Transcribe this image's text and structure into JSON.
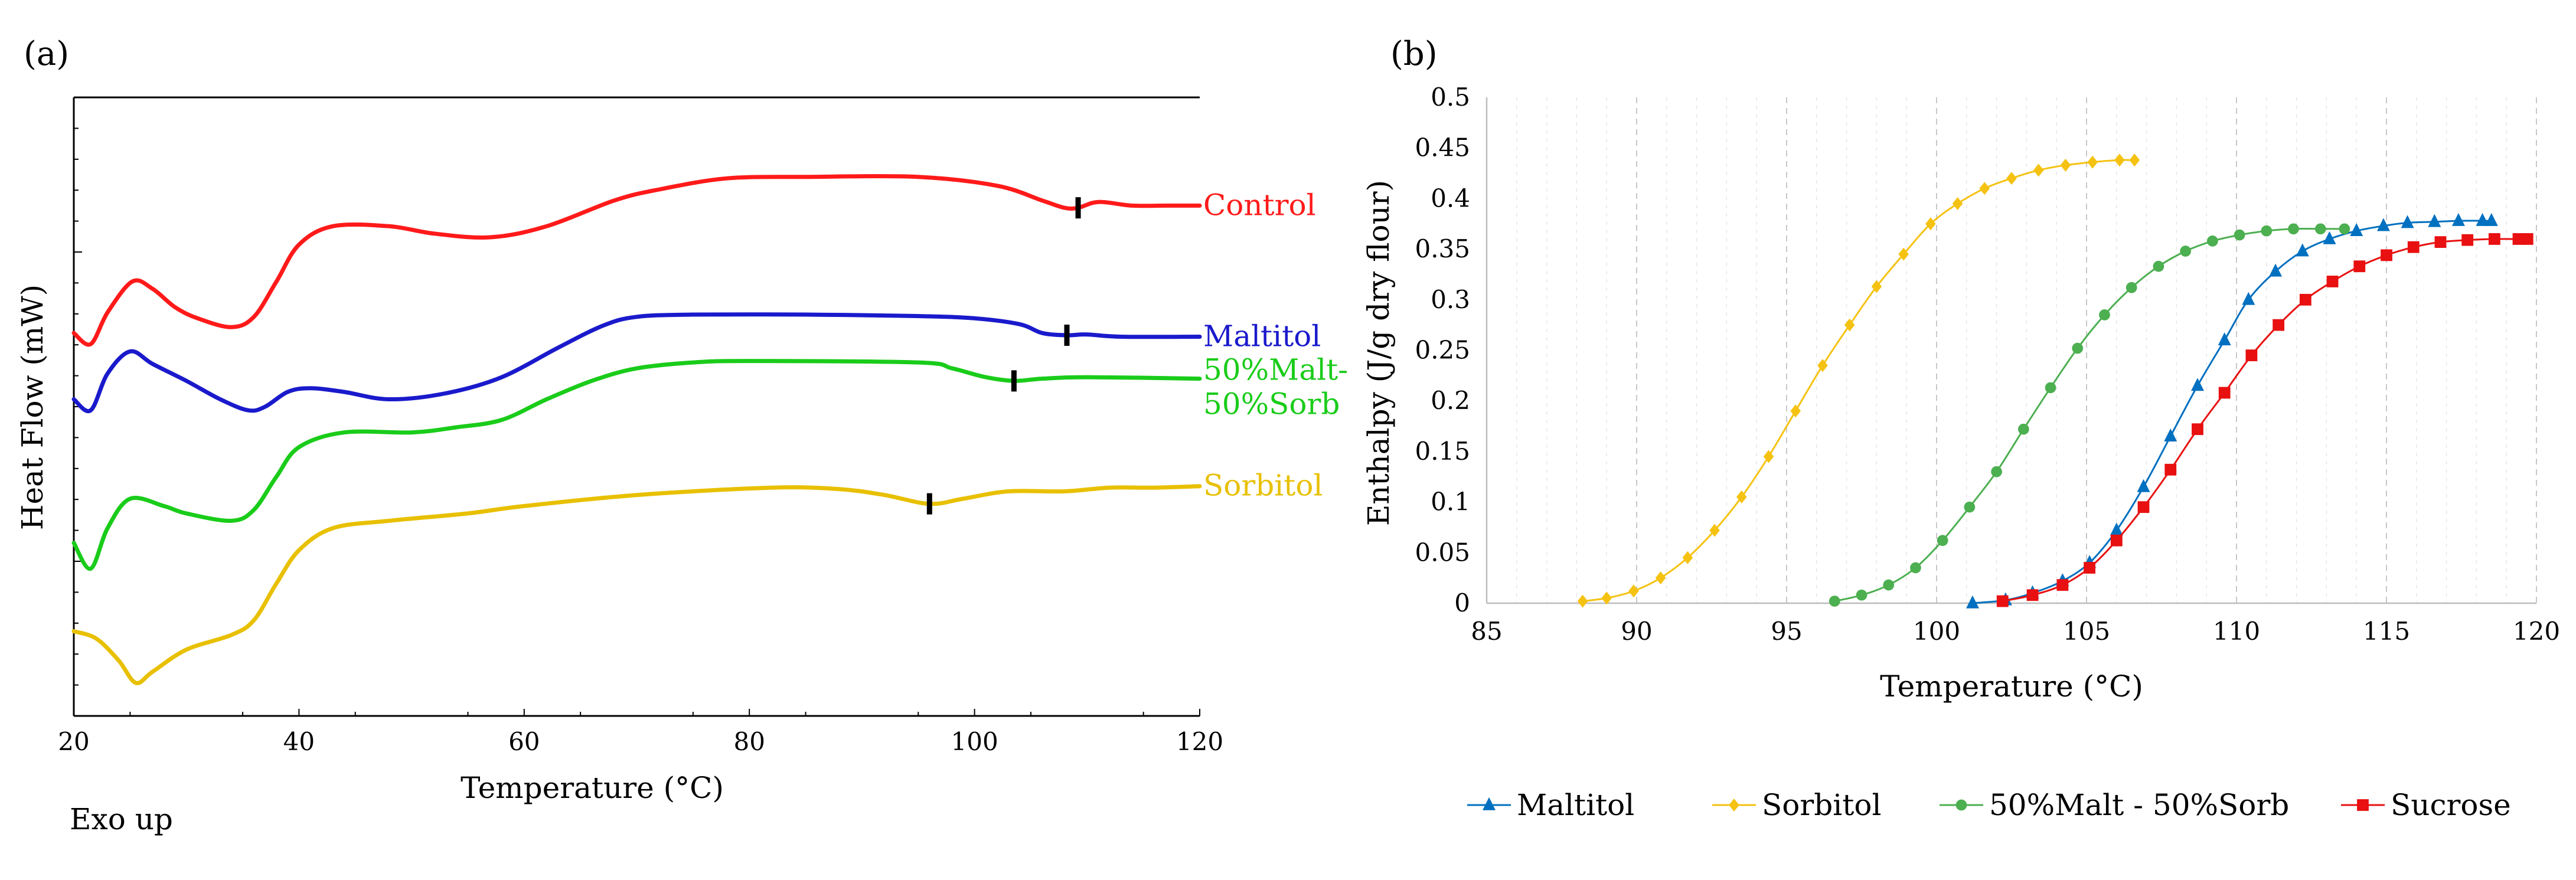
{
  "panel_a": {
    "label": "(a)",
    "note": "Exo up"
  },
  "panel_b": {
    "label": "(b)"
  },
  "chart_data": [
    {
      "type": "line",
      "xlabel": "Temperature (°C)",
      "ylabel": "Heat Flow (mW)",
      "xlim": [
        20,
        120
      ],
      "xticks": [
        "20",
        "40",
        "60",
        "80",
        "100",
        "120"
      ],
      "y_tick_labels_shown": false,
      "legend": "direct labels at right end of each curve",
      "series": [
        {
          "name": "Control",
          "color": "#ff1a1a",
          "end_marker_x": 109.2,
          "points": [
            [
              20,
              0.6
            ],
            [
              21.5,
              0.45
            ],
            [
              23,
              0.88
            ],
            [
              25.2,
              1.3
            ],
            [
              27,
              1.2
            ],
            [
              29,
              0.95
            ],
            [
              31,
              0.8
            ],
            [
              34,
              0.68
            ],
            [
              36,
              0.82
            ],
            [
              38,
              1.3
            ],
            [
              40,
              1.8
            ],
            [
              43,
              2.05
            ],
            [
              48,
              2.05
            ],
            [
              52,
              1.95
            ],
            [
              57,
              1.9
            ],
            [
              62,
              2.05
            ],
            [
              68,
              2.4
            ],
            [
              72,
              2.55
            ],
            [
              78,
              2.7
            ],
            [
              85,
              2.72
            ],
            [
              95,
              2.72
            ],
            [
              102,
              2.6
            ],
            [
              106,
              2.4
            ],
            [
              108,
              2.3
            ],
            [
              109.2,
              2.3
            ],
            [
              111,
              2.38
            ],
            [
              114,
              2.33
            ],
            [
              117,
              2.33
            ],
            [
              120,
              2.33
            ]
          ]
        },
        {
          "name": "Maltitol",
          "color": "#1a1acc",
          "end_marker_x": 108.2,
          "points": [
            [
              20,
              -0.3
            ],
            [
              21.5,
              -0.45
            ],
            [
              23,
              0.05
            ],
            [
              25,
              0.35
            ],
            [
              27,
              0.18
            ],
            [
              30,
              -0.05
            ],
            [
              33,
              -0.3
            ],
            [
              35.5,
              -0.45
            ],
            [
              37,
              -0.4
            ],
            [
              39,
              -0.2
            ],
            [
              41,
              -0.15
            ],
            [
              44,
              -0.2
            ],
            [
              48,
              -0.3
            ],
            [
              53,
              -0.22
            ],
            [
              58,
              0.0
            ],
            [
              63,
              0.4
            ],
            [
              67,
              0.7
            ],
            [
              70,
              0.82
            ],
            [
              75,
              0.85
            ],
            [
              85,
              0.85
            ],
            [
              95,
              0.83
            ],
            [
              100,
              0.8
            ],
            [
              104,
              0.72
            ],
            [
              106,
              0.6
            ],
            [
              108.2,
              0.57
            ],
            [
              110,
              0.58
            ],
            [
              113,
              0.55
            ],
            [
              120,
              0.55
            ]
          ]
        },
        {
          "name": "50%Malt-50%Sorb",
          "name_display": [
            "50%Malt-",
            "50%Sorb"
          ],
          "color": "#1acc1a",
          "end_marker_x": 103.5,
          "points": [
            [
              20,
              -2.25
            ],
            [
              21.5,
              -2.6
            ],
            [
              23,
              -2.05
            ],
            [
              25,
              -1.65
            ],
            [
              28,
              -1.75
            ],
            [
              30,
              -1.85
            ],
            [
              34,
              -1.95
            ],
            [
              36,
              -1.8
            ],
            [
              38,
              -1.35
            ],
            [
              40,
              -0.95
            ],
            [
              44,
              -0.75
            ],
            [
              50,
              -0.75
            ],
            [
              54,
              -0.68
            ],
            [
              58,
              -0.58
            ],
            [
              62,
              -0.3
            ],
            [
              66,
              -0.05
            ],
            [
              70,
              0.12
            ],
            [
              75,
              0.2
            ],
            [
              80,
              0.22
            ],
            [
              95,
              0.2
            ],
            [
              98,
              0.12
            ],
            [
              101,
              0.0
            ],
            [
              103.5,
              -0.05
            ],
            [
              106,
              -0.02
            ],
            [
              110,
              0.0
            ],
            [
              120,
              -0.02
            ]
          ]
        },
        {
          "name": "Sorbitol",
          "color": "#e8c000",
          "end_marker_x": 96.0,
          "points": [
            [
              20,
              -3.45
            ],
            [
              22,
              -3.55
            ],
            [
              24,
              -3.85
            ],
            [
              25.5,
              -4.15
            ],
            [
              27,
              -4.0
            ],
            [
              30,
              -3.7
            ],
            [
              34,
              -3.5
            ],
            [
              36,
              -3.3
            ],
            [
              38,
              -2.8
            ],
            [
              40,
              -2.35
            ],
            [
              43,
              -2.05
            ],
            [
              48,
              -1.95
            ],
            [
              55,
              -1.85
            ],
            [
              60,
              -1.75
            ],
            [
              70,
              -1.6
            ],
            [
              82,
              -1.5
            ],
            [
              88,
              -1.52
            ],
            [
              92,
              -1.6
            ],
            [
              96,
              -1.72
            ],
            [
              99,
              -1.65
            ],
            [
              103,
              -1.55
            ],
            [
              108,
              -1.55
            ],
            [
              112,
              -1.5
            ],
            [
              116,
              -1.5
            ],
            [
              120,
              -1.48
            ]
          ]
        }
      ]
    },
    {
      "type": "line",
      "xlabel": "Temperature (°C)",
      "ylabel": "Enthalpy (J/g dry flour)",
      "xlim": [
        85,
        120
      ],
      "ylim": [
        0,
        0.5
      ],
      "xticks": [
        "85",
        "90",
        "95",
        "100",
        "105",
        "110",
        "115",
        "120"
      ],
      "yticks": [
        "0",
        "0.05",
        "0.1",
        "0.15",
        "0.2",
        "0.25",
        "0.3",
        "0.35",
        "0.4",
        "0.45",
        "0.5"
      ],
      "grid": "vertical dashed",
      "legend": "bottom",
      "series": [
        {
          "name": "Maltitol",
          "color": "#0070c0",
          "marker": "triangle",
          "x": [
            101.2,
            102.3,
            103.2,
            104.2,
            105.1,
            106.0,
            106.9,
            107.8,
            108.7,
            109.6,
            110.4,
            111.3,
            112.2,
            113.1,
            114.0,
            114.9,
            115.7,
            116.6,
            117.4,
            118.2,
            118.5
          ],
          "y": [
            0,
            0.003,
            0.01,
            0.022,
            0.04,
            0.072,
            0.115,
            0.165,
            0.215,
            0.26,
            0.3,
            0.328,
            0.348,
            0.36,
            0.368,
            0.373,
            0.376,
            0.377,
            0.378,
            0.378,
            0.378
          ]
        },
        {
          "name": "Sorbitol",
          "color": "#f5c211",
          "marker": "diamond",
          "x": [
            88.2,
            89.0,
            89.9,
            90.8,
            91.7,
            92.6,
            93.5,
            94.4,
            95.3,
            96.2,
            97.1,
            98.0,
            98.9,
            99.8,
            100.7,
            101.6,
            102.5,
            103.4,
            104.3,
            105.2,
            106.1,
            106.6
          ],
          "y": [
            0.002,
            0.005,
            0.012,
            0.025,
            0.045,
            0.072,
            0.105,
            0.145,
            0.19,
            0.235,
            0.275,
            0.313,
            0.345,
            0.375,
            0.395,
            0.41,
            0.42,
            0.428,
            0.433,
            0.436,
            0.438,
            0.438
          ]
        },
        {
          "name": "50%Malt - 50%Sorb",
          "color": "#4caf50",
          "marker": "circle",
          "x": [
            96.6,
            97.5,
            98.4,
            99.3,
            100.2,
            101.1,
            102.0,
            102.9,
            103.8,
            104.7,
            105.6,
            106.5,
            107.4,
            108.3,
            109.2,
            110.1,
            111.0,
            111.9,
            112.8,
            113.6
          ],
          "y": [
            0.002,
            0.008,
            0.018,
            0.035,
            0.062,
            0.095,
            0.13,
            0.172,
            0.213,
            0.252,
            0.285,
            0.312,
            0.333,
            0.348,
            0.358,
            0.364,
            0.368,
            0.37,
            0.37,
            0.37
          ]
        },
        {
          "name": "Sucrose",
          "color": "#e81010",
          "marker": "square",
          "x": [
            102.2,
            103.2,
            104.2,
            105.1,
            106.0,
            106.9,
            107.8,
            108.7,
            109.6,
            110.5,
            111.4,
            112.3,
            113.2,
            114.1,
            115.0,
            115.9,
            116.8,
            117.7,
            118.6,
            119.4,
            119.7
          ],
          "y": [
            0.002,
            0.008,
            0.018,
            0.035,
            0.062,
            0.095,
            0.132,
            0.172,
            0.208,
            0.245,
            0.275,
            0.3,
            0.318,
            0.333,
            0.344,
            0.352,
            0.357,
            0.359,
            0.36,
            0.36,
            0.36
          ]
        }
      ]
    }
  ]
}
